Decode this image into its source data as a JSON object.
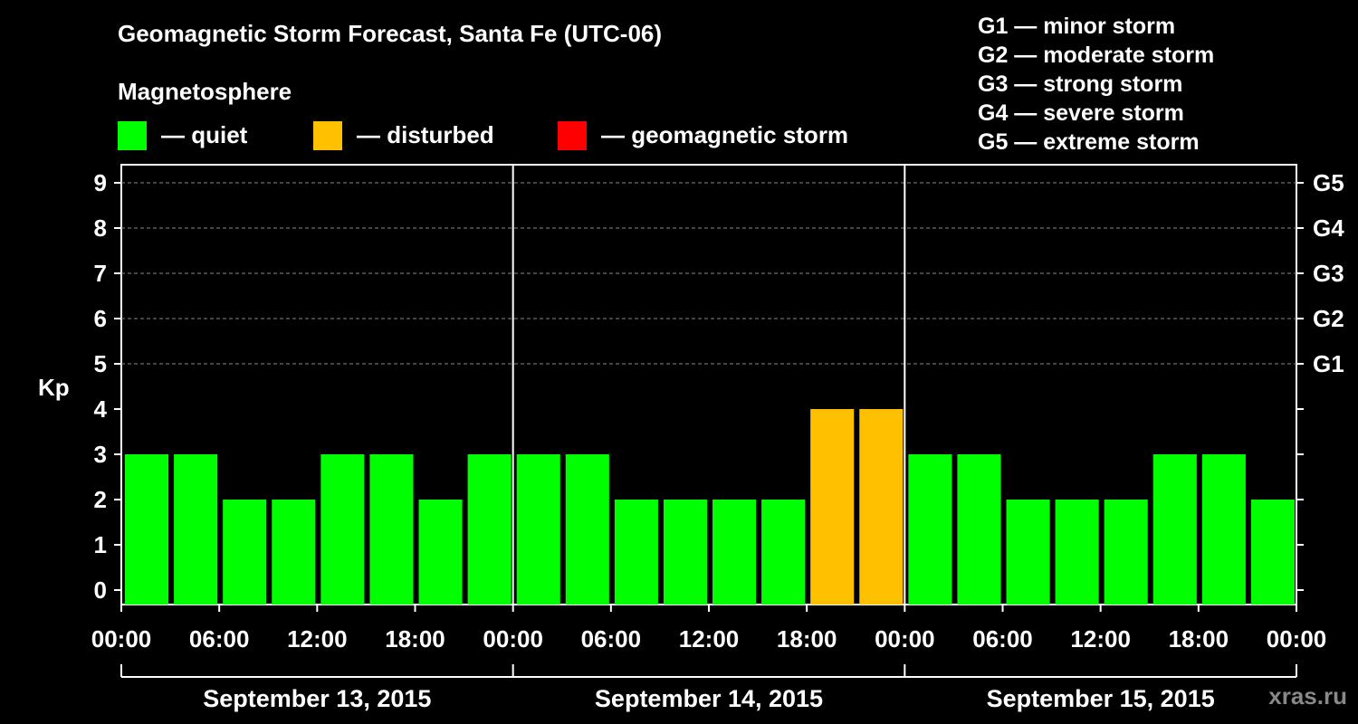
{
  "header": {
    "title": "Geomagnetic Storm Forecast, Santa Fe (UTC-06)",
    "subtitle": "Magnetosphere"
  },
  "legend": [
    {
      "label": "— quiet",
      "color": "#00ff00"
    },
    {
      "label": "— disturbed",
      "color": "#ffc000"
    },
    {
      "label": "— geomagnetic storm",
      "color": "#ff0000"
    }
  ],
  "storm_scale": [
    "G1 — minor storm",
    "G2 — moderate storm",
    "G3 — strong storm",
    "G4 — severe storm",
    "G5 — extreme storm"
  ],
  "watermark": "xras.ru",
  "chart_data": {
    "type": "bar",
    "title": "Geomagnetic Storm Forecast, Santa Fe (UTC-06)",
    "ylabel": "Kp",
    "ylim": [
      0,
      9
    ],
    "yticks": [
      "0",
      "1",
      "2",
      "3",
      "4",
      "5",
      "6",
      "7",
      "8",
      "9"
    ],
    "right_axis": [
      {
        "kp": 5,
        "label": "G1"
      },
      {
        "kp": 6,
        "label": "G2"
      },
      {
        "kp": 7,
        "label": "G3"
      },
      {
        "kp": 8,
        "label": "G4"
      },
      {
        "kp": 9,
        "label": "G5"
      }
    ],
    "xtick_labels": [
      "00:00",
      "06:00",
      "12:00",
      "18:00",
      "00:00",
      "06:00",
      "12:00",
      "18:00",
      "00:00",
      "06:00",
      "12:00",
      "18:00",
      "00:00"
    ],
    "days": [
      "September 13, 2015",
      "September 14, 2015",
      "September 15, 2015"
    ],
    "interval_hours": 3,
    "values": [
      3,
      3,
      2,
      2,
      3,
      3,
      2,
      3,
      3,
      3,
      2,
      2,
      2,
      2,
      4,
      4,
      3,
      3,
      2,
      2,
      2,
      3,
      3,
      2
    ],
    "colors": {
      "quiet": "#00ff00",
      "disturbed": "#ffc000",
      "storm": "#ff0000"
    },
    "grid": "dashed at 5-9"
  }
}
